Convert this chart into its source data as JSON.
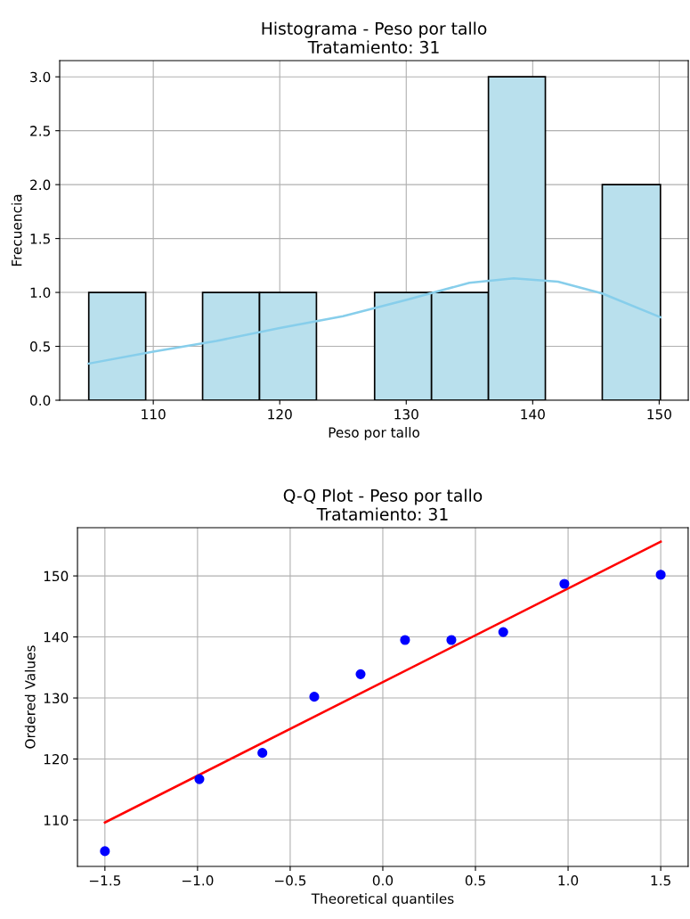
{
  "chart_data": [
    {
      "type": "histogram",
      "title": "Histograma - Peso por tallo\nTratamiento: 31",
      "xlabel": "Peso por tallo",
      "ylabel": "Frecuencia",
      "bins": [
        104.9,
        109.4,
        113.9,
        118.4,
        122.9,
        127.5,
        132.0,
        136.5,
        141.0,
        145.5,
        150.1
      ],
      "values": [
        1,
        0,
        1,
        1,
        0,
        1,
        1,
        3,
        0,
        2
      ],
      "color": "#b9e0ed",
      "series": [
        {
          "type": "line",
          "color": "#87ceeb",
          "x": [
            104.9,
            110,
            115,
            120,
            125,
            130,
            135,
            138.5,
            142,
            145.5,
            150.1
          ],
          "values": [
            0.34,
            0.45,
            0.55,
            0.67,
            0.78,
            0.93,
            1.09,
            1.13,
            1.1,
            0.99,
            0.77
          ]
        }
      ],
      "xlim": [
        102.6,
        152.3
      ],
      "xticks": [
        110,
        120,
        130,
        140,
        150
      ],
      "ylim": [
        0,
        3.15
      ],
      "yticks": [
        {
          "value": 0,
          "label": "0.0"
        },
        {
          "value": 0.5,
          "label": "0.5"
        },
        {
          "value": 1,
          "label": "1.0"
        },
        {
          "value": 1.5,
          "label": "1.5"
        },
        {
          "value": 2,
          "label": "2.0"
        },
        {
          "value": 2.5,
          "label": "2.5"
        },
        {
          "value": 3,
          "label": "3.0"
        }
      ],
      "grid": true
    },
    {
      "type": "scatter",
      "title": "Q-Q Plot - Peso por tallo\nTratamiento: 31",
      "xlabel": "Theoretical quantiles",
      "ylabel": "Ordered Values",
      "series": [
        {
          "type": "scatter",
          "marker": "circle",
          "color": "#0000ff",
          "x": [
            -1.5,
            -0.99,
            -0.65,
            -0.37,
            -0.12,
            0.12,
            0.37,
            0.65,
            0.98,
            1.5
          ],
          "values": [
            104.9,
            116.7,
            121.0,
            130.2,
            133.9,
            139.5,
            139.5,
            140.8,
            148.7,
            150.2
          ]
        },
        {
          "type": "line",
          "color": "#ff0000",
          "x": [
            -1.5,
            1.5
          ],
          "values": [
            109.6,
            155.6
          ]
        }
      ],
      "xlim": [
        -1.648,
        1.648
      ],
      "xticks": [
        {
          "value": -1.5,
          "label": "−1.5"
        },
        {
          "value": -1.0,
          "label": "−1.0"
        },
        {
          "value": -0.5,
          "label": "−0.5"
        },
        {
          "value": 0,
          "label": "0.0"
        },
        {
          "value": 0.5,
          "label": "0.5"
        },
        {
          "value": 1,
          "label": "1.0"
        },
        {
          "value": 1.5,
          "label": "1.5"
        }
      ],
      "ylim": [
        102.4,
        157.9
      ],
      "yticks": [
        110,
        120,
        130,
        140,
        150
      ],
      "grid": true
    }
  ]
}
